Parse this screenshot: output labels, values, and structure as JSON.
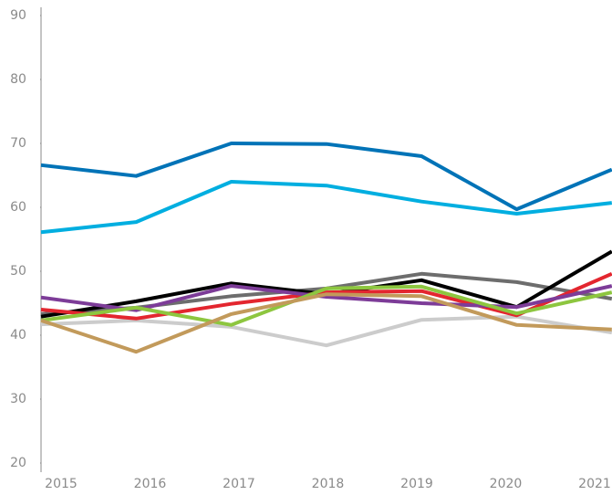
{
  "chart_data": {
    "type": "line",
    "categories": [
      "2015",
      "2016",
      "2017",
      "2018",
      "2019",
      "2020",
      "2021"
    ],
    "ylim": [
      20,
      90
    ],
    "yticks": [
      20,
      30,
      40,
      50,
      60,
      70,
      80,
      90
    ],
    "grid": false,
    "series": [
      {
        "color": "#cccccc",
        "values": [
          41.7,
          42.3,
          41.3,
          38.4,
          42.4,
          42.9,
          40.4
        ]
      },
      {
        "color": "#6d6d6d",
        "values": [
          43.3,
          44.3,
          46.1,
          47.3,
          49.6,
          48.3,
          45.7
        ]
      },
      {
        "color": "#000000",
        "values": [
          42.9,
          45.3,
          48.1,
          46.4,
          48.6,
          44.4,
          53.1
        ]
      },
      {
        "color": "#e3262f",
        "values": [
          44.0,
          42.6,
          44.9,
          46.7,
          46.9,
          43.1,
          49.6
        ]
      },
      {
        "color": "#7d3c98",
        "values": [
          45.9,
          43.9,
          47.7,
          46.0,
          45.0,
          44.4,
          47.7
        ]
      },
      {
        "color": "#8dc63f",
        "values": [
          42.3,
          44.3,
          41.6,
          47.3,
          47.6,
          43.4,
          46.7
        ]
      },
      {
        "color": "#c29a5b",
        "values": [
          42.3,
          37.4,
          43.3,
          46.4,
          46.1,
          41.6,
          40.9
        ]
      },
      {
        "color": "#00aee0",
        "values": [
          56.1,
          57.7,
          64.0,
          63.4,
          60.9,
          59.0,
          60.7
        ]
      },
      {
        "color": "#0073b7",
        "values": [
          66.6,
          64.9,
          70.0,
          69.9,
          68.0,
          59.7,
          65.9
        ]
      }
    ]
  }
}
